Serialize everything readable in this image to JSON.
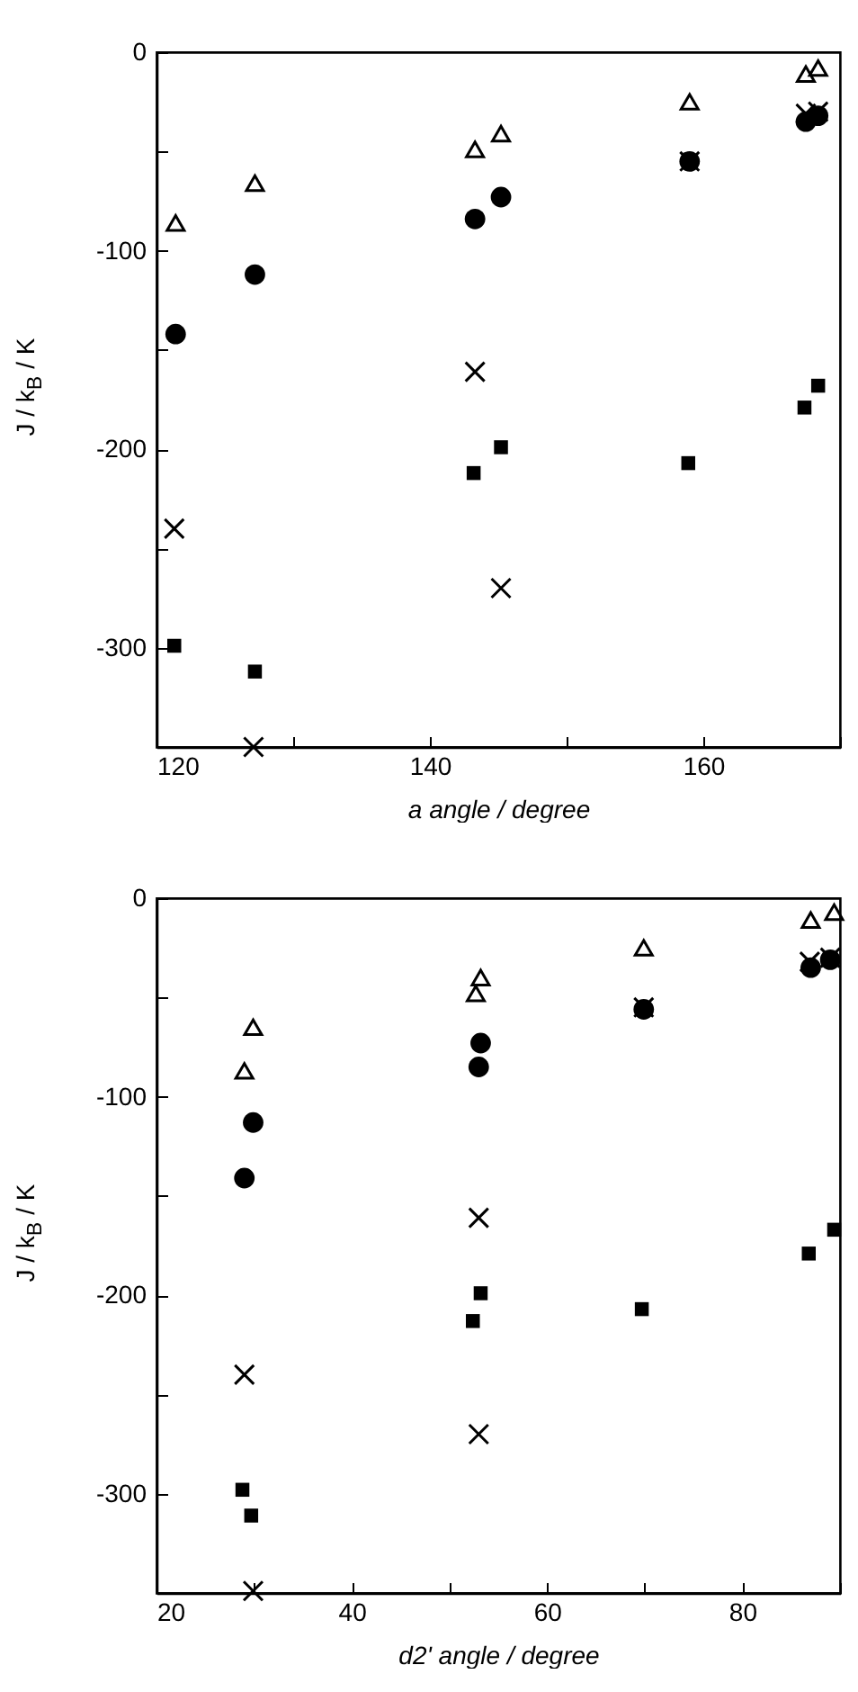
{
  "chart_data": [
    {
      "type": "scatter",
      "xlabel": "a angle / degree",
      "ylabel": "J / k$_{B}$ / K",
      "xlim": [
        120,
        170
      ],
      "ylim": [
        -350,
        0
      ],
      "xticks": [
        120,
        {
          "value": 130,
          "label": null
        },
        140,
        {
          "value": 150,
          "label": null
        },
        160,
        {
          "value": 170,
          "label": null
        }
      ],
      "yticks": [
        {
          "value": -350,
          "label": null
        },
        -300,
        {
          "value": -250,
          "label": null
        },
        -200,
        {
          "value": -150,
          "label": null
        },
        -100,
        {
          "value": -50,
          "label": null
        },
        0
      ],
      "grid": false,
      "series": [
        {
          "color": "#000000",
          "marker": "triangle",
          "x": [
            121.4,
            127.2,
            143.3,
            145.2,
            159,
            167.5,
            168.4
          ],
          "values": [
            -86,
            -66,
            -49,
            -41,
            -25,
            -11,
            -8
          ]
        },
        {
          "color": "#000000",
          "marker": "circle",
          "x": [
            121.4,
            127.2,
            143.3,
            145.2,
            159,
            167.5,
            168.4
          ],
          "values": [
            -142,
            -112,
            -84,
            -73,
            -55,
            -35,
            -32
          ]
        },
        {
          "color": "#000000",
          "marker": "cross",
          "x": [
            121.3,
            127.1,
            143.3,
            145.2,
            159,
            167.5,
            168.4
          ],
          "values": [
            -240,
            -350,
            -161,
            -270,
            -55,
            -31,
            -30
          ]
        },
        {
          "color": "#000000",
          "marker": "square",
          "x": [
            121.3,
            127.2,
            143.2,
            145.2,
            158.9,
            167.4,
            168.4
          ],
          "values": [
            -299,
            -312,
            -212,
            -199,
            -207,
            -179,
            -168
          ]
        }
      ]
    },
    {
      "type": "scatter",
      "xlabel": "d2' angle / degree",
      "ylabel": "J / k$_{B}$ / K",
      "xlim": [
        20,
        90
      ],
      "ylim": [
        -350,
        0
      ],
      "xticks": [
        20,
        {
          "value": 30,
          "label": null
        },
        40,
        {
          "value": 50,
          "label": null
        },
        60,
        {
          "value": 70,
          "label": null
        },
        80,
        {
          "value": 90,
          "label": null
        }
      ],
      "yticks": [
        {
          "value": -350,
          "label": null
        },
        -300,
        {
          "value": -250,
          "label": null
        },
        -200,
        {
          "value": -150,
          "label": null
        },
        -100,
        {
          "value": -50,
          "label": null
        },
        0
      ],
      "grid": false,
      "series": [
        {
          "color": "#000000",
          "marker": "triangle",
          "x": [
            29.9,
            29,
            53.2,
            52.7,
            69.9,
            87,
            89.4
          ],
          "values": [
            -65,
            -87,
            -40,
            -48,
            -25,
            -11,
            -7
          ]
        },
        {
          "color": "#000000",
          "marker": "circle",
          "x": [
            29,
            29.9,
            53,
            53.2,
            69.9,
            87,
            89
          ],
          "values": [
            -141,
            -113,
            -85,
            -73,
            -56,
            -35,
            -31
          ]
        },
        {
          "color": "#000000",
          "marker": "cross",
          "x": [
            29,
            29.9,
            53,
            53,
            69.9,
            86.9,
            89
          ],
          "values": [
            -240,
            -349,
            -161,
            -270,
            -55,
            -32,
            -30
          ]
        },
        {
          "color": "#000000",
          "marker": "square",
          "x": [
            28.8,
            29.7,
            52.4,
            53.2,
            69.7,
            86.8,
            89.4
          ],
          "values": [
            -298,
            -311,
            -213,
            -199,
            -207,
            -179,
            -167
          ]
        }
      ]
    }
  ]
}
